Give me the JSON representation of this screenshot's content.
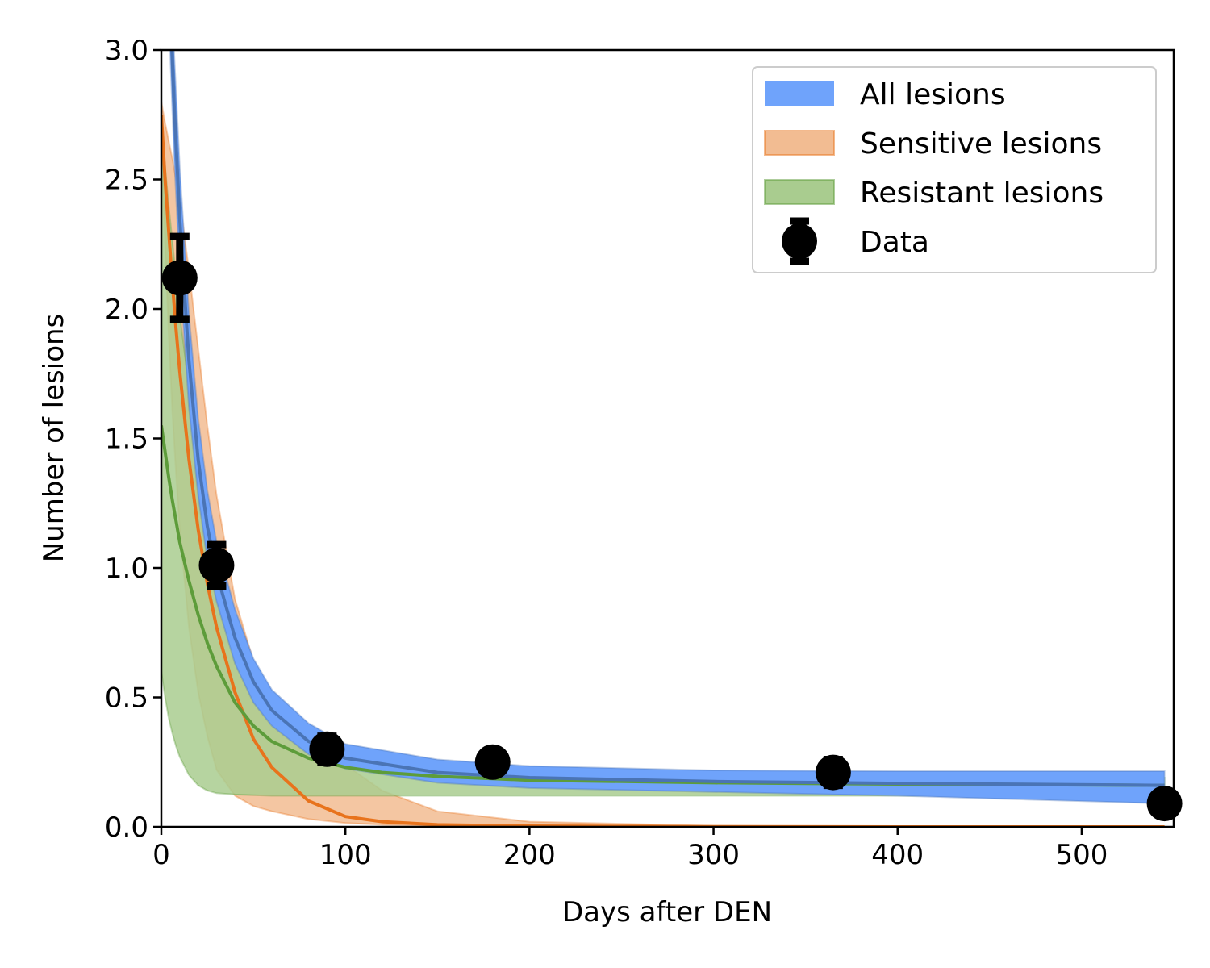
{
  "chart_data": {
    "type": "line",
    "title": "",
    "xlabel": "Days after DEN",
    "ylabel": "Number of lesions",
    "xlim": [
      0,
      550
    ],
    "ylim": [
      0,
      3.0
    ],
    "xticks": [
      0,
      100,
      200,
      300,
      400,
      500
    ],
    "yticks": [
      0.0,
      0.5,
      1.0,
      1.5,
      2.0,
      2.5,
      3.0
    ],
    "xtick_labels": [
      "0",
      "100",
      "200",
      "300",
      "400",
      "500"
    ],
    "ytick_labels": [
      "0.0",
      "0.5",
      "1.0",
      "1.5",
      "2.0",
      "2.5",
      "3.0"
    ],
    "grid": false,
    "legend_position": "top-right",
    "series": [
      {
        "name": "All lesions",
        "kind": "band",
        "fill": "#6fa3fb",
        "line": "#4a74b5",
        "x": [
          4,
          5,
          7,
          10,
          15,
          20,
          25,
          30,
          40,
          50,
          60,
          80,
          100,
          150,
          200,
          300,
          400,
          545
        ],
        "center": [
          3.4,
          3.15,
          2.78,
          2.35,
          1.8,
          1.42,
          1.16,
          0.98,
          0.73,
          0.56,
          0.45,
          0.33,
          0.265,
          0.21,
          0.19,
          0.175,
          0.168,
          0.16
        ],
        "lower": [
          3.2,
          2.95,
          2.58,
          2.15,
          1.62,
          1.28,
          1.03,
          0.87,
          0.63,
          0.48,
          0.39,
          0.28,
          0.225,
          0.17,
          0.15,
          0.135,
          0.12,
          0.09
        ],
        "upper": [
          3.6,
          3.35,
          2.98,
          2.55,
          1.98,
          1.58,
          1.3,
          1.1,
          0.84,
          0.65,
          0.53,
          0.4,
          0.32,
          0.26,
          0.235,
          0.218,
          0.215,
          0.215
        ]
      },
      {
        "name": "Sensitive lesions",
        "kind": "band",
        "fill": "#f2bc92",
        "line": "#e8731c",
        "x": [
          0,
          2,
          4,
          6,
          8,
          10,
          15,
          20,
          25,
          30,
          40,
          50,
          60,
          80,
          100,
          120,
          150,
          200,
          300,
          400,
          545
        ],
        "center": [
          2.75,
          2.5,
          2.3,
          2.1,
          1.92,
          1.76,
          1.42,
          1.15,
          0.94,
          0.77,
          0.52,
          0.34,
          0.23,
          0.1,
          0.04,
          0.02,
          0.008,
          0.003,
          0.001,
          0,
          0
        ],
        "lower": [
          2.7,
          2.25,
          1.9,
          1.6,
          1.36,
          1.15,
          0.77,
          0.52,
          0.35,
          0.22,
          0.12,
          0.08,
          0.06,
          0.03,
          0.015,
          0.008,
          0.003,
          0.001,
          0,
          0,
          0
        ],
        "upper": [
          2.8,
          2.72,
          2.65,
          2.58,
          2.5,
          2.42,
          2.15,
          1.85,
          1.55,
          1.28,
          0.88,
          0.64,
          0.5,
          0.35,
          0.24,
          0.14,
          0.06,
          0.02,
          0.004,
          0.001,
          0
        ]
      },
      {
        "name": "Resistant lesions",
        "kind": "band",
        "fill": "#a9cc8f",
        "line": "#5d9c3a",
        "x": [
          0,
          2,
          4,
          6,
          8,
          10,
          15,
          20,
          25,
          30,
          40,
          50,
          60,
          80,
          100,
          120,
          150,
          200,
          300,
          400,
          545
        ],
        "center": [
          1.55,
          1.45,
          1.35,
          1.26,
          1.18,
          1.1,
          0.95,
          0.82,
          0.71,
          0.62,
          0.48,
          0.39,
          0.33,
          0.265,
          0.23,
          0.21,
          0.195,
          0.18,
          0.17,
          0.165,
          0.16
        ],
        "lower": [
          0.6,
          0.5,
          0.42,
          0.36,
          0.31,
          0.27,
          0.2,
          0.16,
          0.14,
          0.13,
          0.125,
          0.122,
          0.12,
          0.12,
          0.12,
          0.12,
          0.12,
          0.12,
          0.12,
          0.12,
          0.12
        ],
        "upper": [
          2.7,
          2.55,
          2.4,
          2.26,
          2.12,
          1.98,
          1.7,
          1.45,
          1.24,
          1.06,
          0.8,
          0.62,
          0.5,
          0.37,
          0.3,
          0.26,
          0.23,
          0.21,
          0.2,
          0.195,
          0.19
        ]
      }
    ],
    "data_points": {
      "name": "Data",
      "x": [
        10,
        30,
        90,
        180,
        365,
        545
      ],
      "y": [
        2.12,
        1.01,
        0.3,
        0.25,
        0.21,
        0.09
      ],
      "yerr_low": [
        1.96,
        0.93,
        0.25,
        0.25,
        0.16,
        0.09
      ],
      "yerr_high": [
        2.28,
        1.09,
        0.35,
        0.25,
        0.26,
        0.09
      ]
    }
  }
}
